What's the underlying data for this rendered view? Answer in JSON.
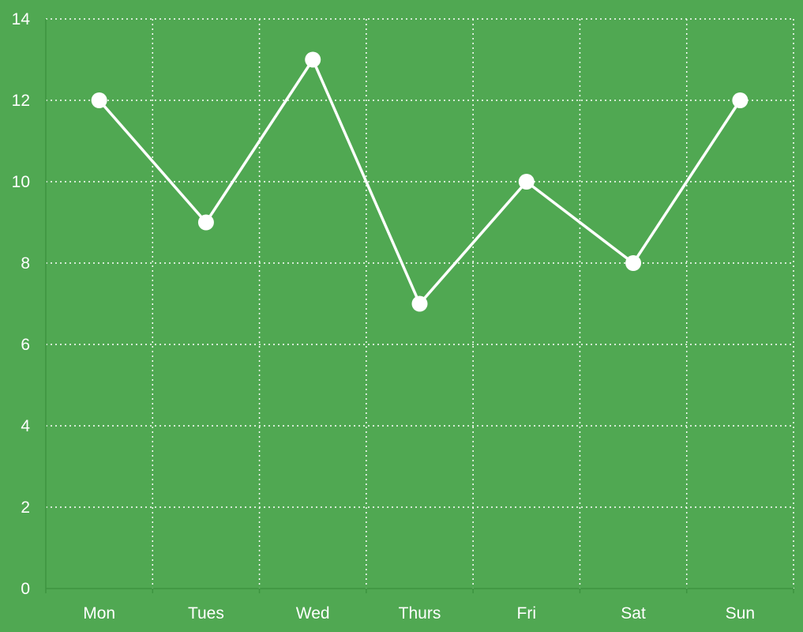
{
  "chart_data": {
    "type": "line",
    "categories": [
      "Mon",
      "Tues",
      "Wed",
      "Thurs",
      "Fri",
      "Sat",
      "Sun"
    ],
    "series": [
      {
        "values": [
          12,
          9,
          13,
          7,
          10,
          8,
          12
        ]
      }
    ],
    "ylim": [
      0,
      14
    ],
    "yticks": [
      0,
      2,
      4,
      6,
      8,
      10,
      12,
      14
    ],
    "grid": true,
    "grid_style": "dotted",
    "colors": {
      "background": "#50a852",
      "line": "#ffffff",
      "grid": "#ffffff",
      "axis": "#3d9440",
      "text": "#ffffff"
    }
  }
}
